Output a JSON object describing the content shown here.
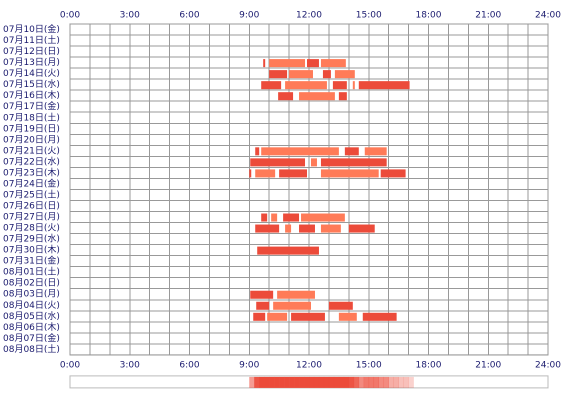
{
  "chart_data": {
    "type": "timeline",
    "categories": [
      "07月10日(金)",
      "07月11日(土)",
      "07月12日(日)",
      "07月13日(月)",
      "07月14日(火)",
      "07月15日(水)",
      "07月16日(木)",
      "07月17日(金)",
      "07月18日(土)",
      "07月19日(日)",
      "07月20日(月)",
      "07月21日(火)",
      "07月22日(水)",
      "07月23日(木)",
      "07月24日(金)",
      "07月25日(土)",
      "07月26日(日)",
      "07月27日(月)",
      "07月28日(火)",
      "07月29日(水)",
      "07月30日(木)",
      "07月31日(金)",
      "08月01日(土)",
      "08月02日(日)",
      "08月03日(月)",
      "08月04日(火)",
      "08月05日(水)",
      "08月06日(木)",
      "08月07日(金)",
      "08月08日(土)"
    ],
    "values": [
      [],
      [],
      [],
      [
        [
          9.7,
          9.8
        ],
        [
          10.0,
          11.8
        ],
        [
          11.9,
          12.5
        ],
        [
          12.6,
          13.85
        ]
      ],
      [
        [
          10.0,
          10.9
        ],
        [
          11.0,
          12.2
        ],
        [
          12.7,
          13.1
        ],
        [
          13.3,
          14.3
        ]
      ],
      [
        [
          9.6,
          10.6
        ],
        [
          10.8,
          12.9
        ],
        [
          13.2,
          13.9
        ],
        [
          14.2,
          14.3
        ],
        [
          14.5,
          17.05
        ]
      ],
      [
        [
          10.45,
          11.2
        ],
        [
          11.5,
          13.3
        ],
        [
          13.5,
          13.9
        ]
      ],
      [],
      [],
      [],
      [],
      [
        [
          9.3,
          9.5
        ],
        [
          9.6,
          13.5
        ],
        [
          13.8,
          14.5
        ],
        [
          14.8,
          15.9
        ]
      ],
      [
        [
          9.05,
          11.8
        ],
        [
          12.1,
          12.4
        ],
        [
          12.6,
          15.9
        ]
      ],
      [
        [
          9.0,
          9.1
        ],
        [
          9.3,
          10.3
        ],
        [
          10.5,
          11.9
        ],
        [
          12.6,
          15.5
        ],
        [
          15.6,
          16.85
        ]
      ],
      [],
      [],
      [],
      [
        [
          9.6,
          9.9
        ],
        [
          10.1,
          10.4
        ],
        [
          10.7,
          11.5
        ],
        [
          11.6,
          13.8
        ]
      ],
      [
        [
          9.3,
          10.5
        ],
        [
          10.8,
          11.1
        ],
        [
          11.5,
          12.3
        ],
        [
          12.6,
          13.6
        ],
        [
          14.0,
          15.3
        ]
      ],
      [],
      [
        [
          9.4,
          12.5
        ]
      ],
      [],
      [],
      [],
      [
        [
          9.05,
          10.2
        ],
        [
          10.4,
          12.3
        ]
      ],
      [
        [
          9.35,
          10.0
        ],
        [
          10.2,
          12.1
        ],
        [
          13.0,
          14.2
        ]
      ],
      [
        [
          9.2,
          9.8
        ],
        [
          9.9,
          10.9
        ],
        [
          11.1,
          12.8
        ],
        [
          13.5,
          14.4
        ],
        [
          14.7,
          16.4
        ]
      ],
      [],
      [],
      []
    ],
    "colors": [
      "#ec4b3a",
      "#ff7b58"
    ],
    "xlim": [
      0,
      24
    ],
    "xticks": [
      {
        "value": 0,
        "label": "0:00"
      },
      {
        "value": 3,
        "label": "3:00"
      },
      {
        "value": 6,
        "label": "6:00"
      },
      {
        "value": 9,
        "label": "9:00"
      },
      {
        "value": 12,
        "label": "12:00"
      },
      {
        "value": 15,
        "label": "15:00"
      },
      {
        "value": 18,
        "label": "18:00"
      },
      {
        "value": 21,
        "label": "21:00"
      },
      {
        "value": 24,
        "label": "24:00"
      }
    ],
    "grid": true
  }
}
